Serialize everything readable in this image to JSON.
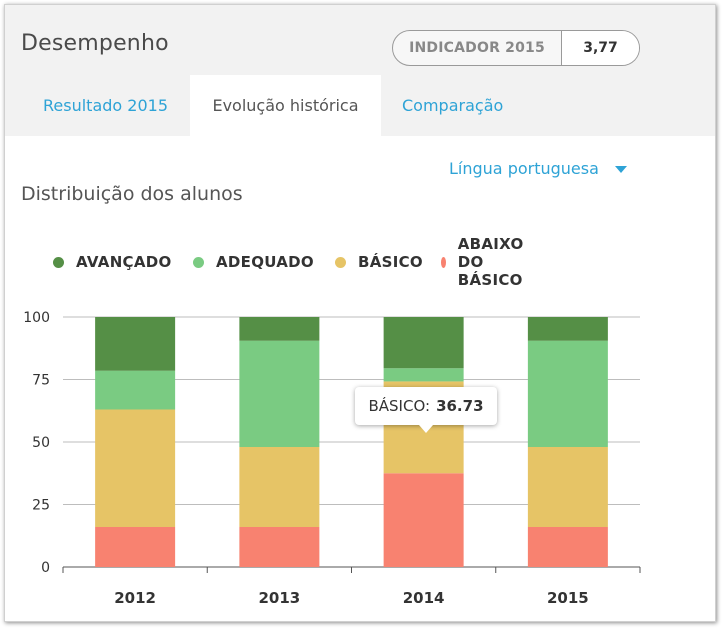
{
  "header": {
    "title": "Desempenho",
    "indicator_label": "INDICADOR 2015",
    "indicator_value": "3,77"
  },
  "tabs": [
    {
      "label": "Resultado 2015",
      "active": false
    },
    {
      "label": "Evolução histórica",
      "active": true
    },
    {
      "label": "Comparação",
      "active": false
    }
  ],
  "subject_select": {
    "value": "Língua portuguesa",
    "icon": "caret-down-icon"
  },
  "section_title": "Distribuição dos alunos",
  "colors": {
    "accent": "#2ea3d6",
    "avancado": "#558f46",
    "adequado": "#7acb82",
    "basico": "#e6c466",
    "abaixo": "#f88270"
  },
  "tooltip": {
    "label": "BÁSICO:",
    "value": "36.73"
  },
  "chart_data": {
    "type": "bar",
    "stacked": true,
    "title": "",
    "xlabel": "",
    "ylabel": "",
    "categories": [
      "2012",
      "2013",
      "2014",
      "2015"
    ],
    "ylim": [
      0,
      100
    ],
    "yticks": [
      "0",
      "25",
      "50",
      "75",
      "100"
    ],
    "grid": true,
    "legend": "top",
    "series": [
      {
        "name": "ABAIXO DO BÁSICO",
        "color": "#f88270",
        "values": [
          16,
          16,
          37.5,
          16
        ]
      },
      {
        "name": "BÁSICO",
        "color": "#e6c466",
        "values": [
          47,
          32,
          36.73,
          32
        ]
      },
      {
        "name": "ADEQUADO",
        "color": "#7acb82",
        "values": [
          15.5,
          42.5,
          5.27,
          42.5
        ]
      },
      {
        "name": "AVANÇADO",
        "color": "#558f46",
        "values": [
          21.5,
          9.5,
          20.5,
          9.5
        ]
      }
    ]
  }
}
